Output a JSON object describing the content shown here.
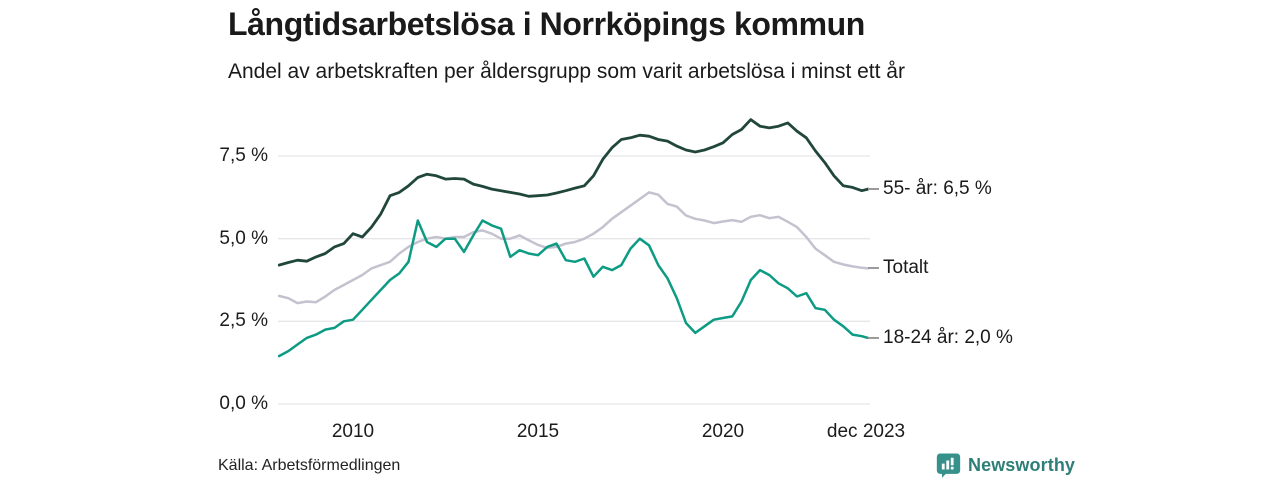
{
  "header": {
    "title": "Långtidsarbetslösa i Norrköpings kommun",
    "subtitle": "Andel av arbetskraften per åldersgrupp som varit arbetslösa i minst ett år"
  },
  "footer": {
    "source": "Källa: Arbetsförmedlingen",
    "brand": "Newsworthy",
    "brand_color": "#2e7e78",
    "brand_icon": "bar-chart-speech-bubble-icon"
  },
  "colors": {
    "background": "#ffffff",
    "gridline": "#e7e6ea",
    "text": "#1a1a1a",
    "tick_dash": "#9a9a9a"
  },
  "chart_data": {
    "type": "line",
    "title": "Långtidsarbetslösa i Norrköpings kommun",
    "subtitle": "Andel av arbetskraften per åldersgrupp som varit arbetslösa i minst ett år",
    "xlabel": "",
    "ylabel": "",
    "grid": "horizontal",
    "legend_position": "right-end-labels",
    "y_ticks": [
      "7,5 %",
      "5,0 %",
      "2,5 %",
      "0,0 %"
    ],
    "y_tick_values": [
      7.5,
      5.0,
      2.5,
      0.0
    ],
    "x_ticks": [
      "2010",
      "2015",
      "2020",
      "dec 2023"
    ],
    "x_tick_values": [
      2010,
      2015,
      2020,
      2023.92
    ],
    "x_range": [
      2008.0,
      2023.92
    ],
    "ylim": [
      0,
      9.0
    ],
    "unit": "%",
    "x": [
      2008.0,
      2008.25,
      2008.5,
      2008.75,
      2009.0,
      2009.25,
      2009.5,
      2009.75,
      2010.0,
      2010.25,
      2010.5,
      2010.75,
      2011.0,
      2011.25,
      2011.5,
      2011.75,
      2012.0,
      2012.25,
      2012.5,
      2012.75,
      2013.0,
      2013.25,
      2013.5,
      2013.75,
      2014.0,
      2014.25,
      2014.5,
      2014.75,
      2015.0,
      2015.25,
      2015.5,
      2015.75,
      2016.0,
      2016.25,
      2016.5,
      2016.75,
      2017.0,
      2017.25,
      2017.5,
      2017.75,
      2018.0,
      2018.25,
      2018.5,
      2018.75,
      2019.0,
      2019.25,
      2019.5,
      2019.75,
      2020.0,
      2020.25,
      2020.5,
      2020.75,
      2021.0,
      2021.25,
      2021.5,
      2021.75,
      2022.0,
      2022.25,
      2022.5,
      2022.75,
      2023.0,
      2023.25,
      2023.5,
      2023.75,
      2023.92
    ],
    "series": [
      {
        "name": "55- år",
        "label": "55- år: 6,5 %",
        "end_value": "6,5 %",
        "color": "#21473c",
        "stroke_width": 2.8,
        "values": [
          4.2,
          4.28,
          4.35,
          4.32,
          4.45,
          4.55,
          4.75,
          4.85,
          5.15,
          5.05,
          5.35,
          5.75,
          6.3,
          6.4,
          6.6,
          6.85,
          6.95,
          6.9,
          6.8,
          6.82,
          6.8,
          6.65,
          6.58,
          6.5,
          6.45,
          6.4,
          6.35,
          6.28,
          6.3,
          6.32,
          6.38,
          6.45,
          6.53,
          6.6,
          6.9,
          7.4,
          7.75,
          8.0,
          8.05,
          8.13,
          8.1,
          8.0,
          7.95,
          7.8,
          7.68,
          7.62,
          7.68,
          7.78,
          7.9,
          8.15,
          8.3,
          8.6,
          8.4,
          8.35,
          8.4,
          8.5,
          8.25,
          8.05,
          7.65,
          7.3,
          6.9,
          6.6,
          6.55,
          6.45,
          6.5
        ]
      },
      {
        "name": "Totalt",
        "label": "Totalt",
        "end_value": "4,1 %",
        "color": "#c5c2cf",
        "stroke_width": 2.5,
        "values": [
          3.27,
          3.2,
          3.05,
          3.1,
          3.08,
          3.25,
          3.45,
          3.6,
          3.75,
          3.9,
          4.1,
          4.2,
          4.3,
          4.55,
          4.75,
          4.9,
          5.0,
          5.05,
          5.0,
          5.05,
          5.05,
          5.2,
          5.25,
          5.15,
          5.0,
          5.0,
          5.1,
          4.95,
          4.81,
          4.72,
          4.75,
          4.85,
          4.9,
          5.0,
          5.15,
          5.35,
          5.6,
          5.8,
          6.0,
          6.2,
          6.4,
          6.33,
          6.05,
          5.97,
          5.7,
          5.6,
          5.55,
          5.47,
          5.52,
          5.56,
          5.51,
          5.66,
          5.71,
          5.62,
          5.66,
          5.51,
          5.35,
          5.05,
          4.7,
          4.5,
          4.3,
          4.22,
          4.16,
          4.12,
          4.1
        ]
      },
      {
        "name": "18-24 år",
        "label": "18-24 år: 2,0 %",
        "end_value": "2,0 %",
        "color": "#0d9b84",
        "stroke_width": 2.5,
        "values": [
          1.45,
          1.6,
          1.8,
          2.0,
          2.1,
          2.25,
          2.3,
          2.5,
          2.55,
          2.85,
          3.15,
          3.45,
          3.75,
          3.95,
          4.3,
          5.55,
          4.9,
          4.75,
          5.0,
          5.0,
          4.6,
          5.1,
          5.55,
          5.4,
          5.3,
          4.45,
          4.65,
          4.55,
          4.5,
          4.75,
          4.85,
          4.35,
          4.3,
          4.4,
          3.85,
          4.15,
          4.05,
          4.2,
          4.7,
          5.0,
          4.8,
          4.2,
          3.8,
          3.2,
          2.45,
          2.15,
          2.35,
          2.55,
          2.6,
          2.65,
          3.1,
          3.75,
          4.05,
          3.9,
          3.65,
          3.5,
          3.25,
          3.35,
          2.9,
          2.85,
          2.55,
          2.35,
          2.1,
          2.05,
          2.0
        ]
      }
    ]
  }
}
